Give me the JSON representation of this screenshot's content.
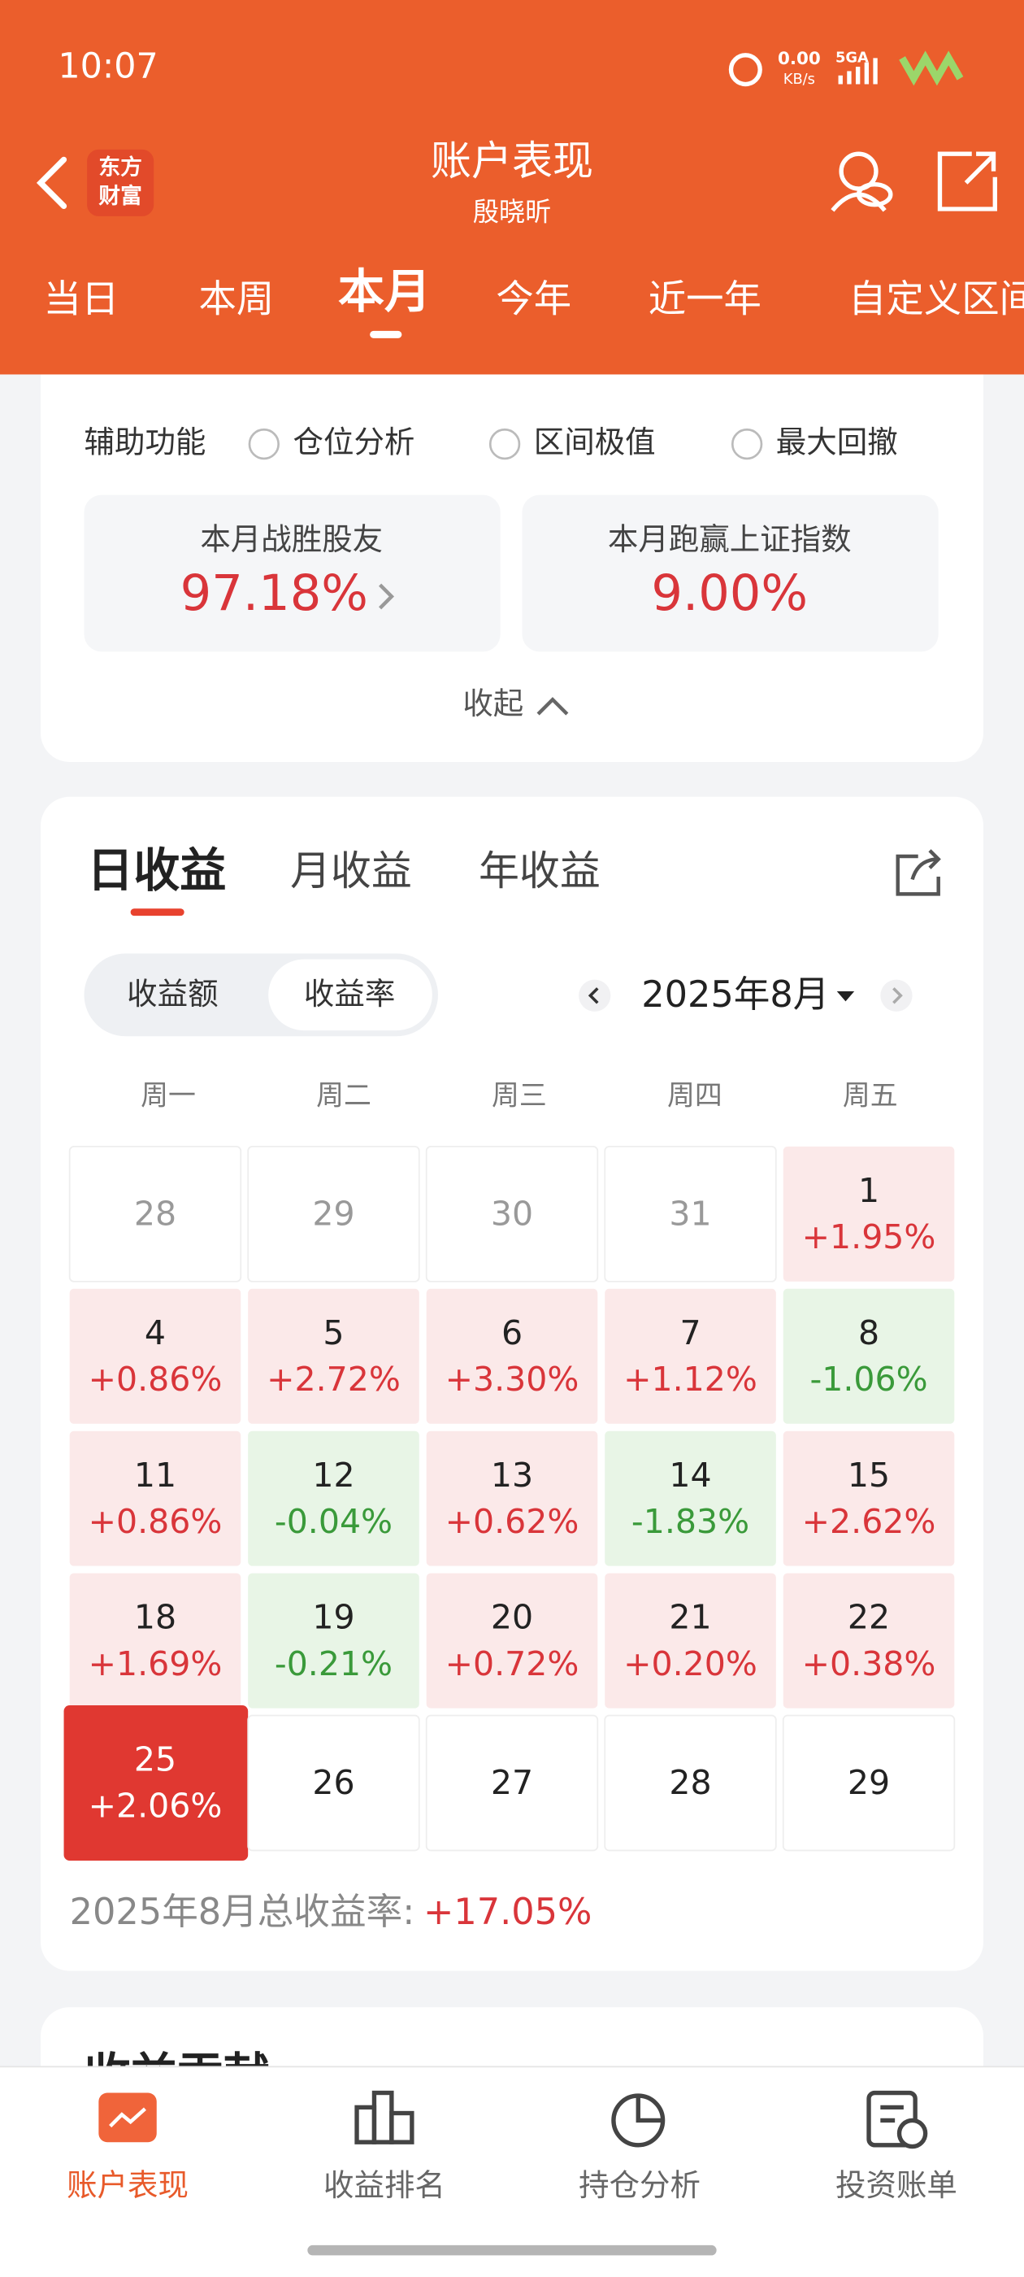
{
  "status": {
    "time": "10:07",
    "speed": "0.00",
    "speed_unit": "KB/s",
    "network": "5GA"
  },
  "header": {
    "logo_top": "东方",
    "logo_bottom": "财富",
    "title": "账户表现",
    "subtitle": "殷晓昕"
  },
  "tabs": [
    "当日",
    "本周",
    "本月",
    "今年",
    "近一年",
    "自定义区间"
  ],
  "aux": {
    "label": "辅助功能",
    "options": [
      "仓位分析",
      "区间极值",
      "最大回撤"
    ]
  },
  "stats": [
    {
      "label": "本月战胜股友",
      "value": "97.18%"
    },
    {
      "label": "本月跑赢上证指数",
      "value": "9.00%"
    }
  ],
  "collapse": "收起",
  "returns": {
    "tabs": [
      "日收益",
      "月收益",
      "年收益"
    ],
    "toggle": [
      "收益额",
      "收益率"
    ],
    "month": "2025年8月",
    "weekdays": [
      "周一",
      "周二",
      "周三",
      "周四",
      "周五"
    ],
    "cells": [
      {
        "day": "28",
        "state": "other"
      },
      {
        "day": "29",
        "state": "other"
      },
      {
        "day": "30",
        "state": "other"
      },
      {
        "day": "31",
        "state": "other"
      },
      {
        "day": "1",
        "value": "+1.95%",
        "state": "up"
      },
      {
        "day": "4",
        "value": "+0.86%",
        "state": "up"
      },
      {
        "day": "5",
        "value": "+2.72%",
        "state": "up"
      },
      {
        "day": "6",
        "value": "+3.30%",
        "state": "up"
      },
      {
        "day": "7",
        "value": "+1.12%",
        "state": "up"
      },
      {
        "day": "8",
        "value": "-1.06%",
        "state": "down"
      },
      {
        "day": "11",
        "value": "+0.86%",
        "state": "up"
      },
      {
        "day": "12",
        "value": "-0.04%",
        "state": "down"
      },
      {
        "day": "13",
        "value": "+0.62%",
        "state": "up"
      },
      {
        "day": "14",
        "value": "-1.83%",
        "state": "down"
      },
      {
        "day": "15",
        "value": "+2.62%",
        "state": "up"
      },
      {
        "day": "18",
        "value": "+1.69%",
        "state": "up"
      },
      {
        "day": "19",
        "value": "-0.21%",
        "state": "down"
      },
      {
        "day": "20",
        "value": "+0.72%",
        "state": "up"
      },
      {
        "day": "21",
        "value": "+0.20%",
        "state": "up"
      },
      {
        "day": "22",
        "value": "+0.38%",
        "state": "up"
      },
      {
        "day": "25",
        "value": "+2.06%",
        "state": "selected"
      },
      {
        "day": "26",
        "state": "none"
      },
      {
        "day": "27",
        "state": "none"
      },
      {
        "day": "28",
        "state": "none"
      },
      {
        "day": "29",
        "state": "none"
      }
    ],
    "total_label": "2025年8月总收益率:",
    "total": "+17.05%"
  },
  "next_section": "收益贡献",
  "nav": [
    "账户表现",
    "收益排名",
    "持仓分析",
    "投资账单"
  ]
}
